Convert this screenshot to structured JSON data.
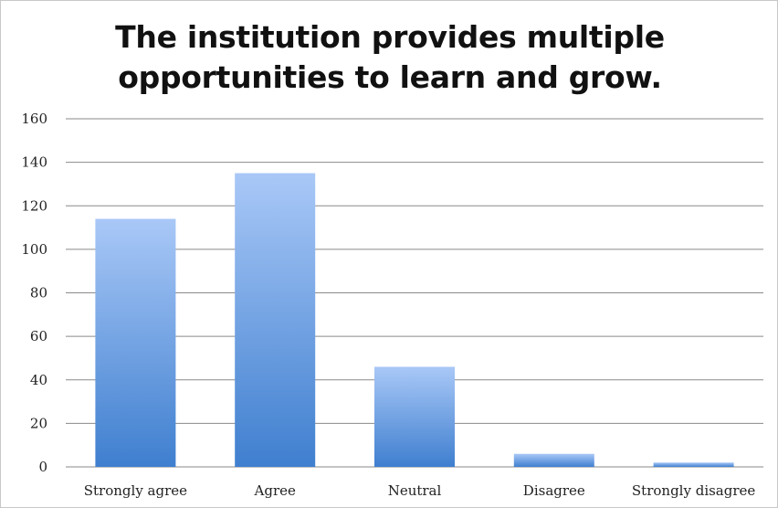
{
  "chart_data": {
    "type": "bar",
    "title_lines": [
      "The institution provides multiple",
      "opportunities to learn and grow."
    ],
    "categories": [
      "Strongly agree",
      "Agree",
      "Neutral",
      "Disagree",
      "Strongly disagree"
    ],
    "values": [
      114,
      135,
      46,
      6,
      2
    ],
    "ylim": [
      0,
      160
    ],
    "yticks": [
      "0",
      "20",
      "40",
      "60",
      "80",
      "100",
      "120",
      "140",
      "160"
    ],
    "grid": true,
    "legend": "none",
    "colors": {
      "bar_top": "#a9c8f7",
      "bar_bottom": "#3f7fcf",
      "grid": "#8a8a8a"
    }
  }
}
